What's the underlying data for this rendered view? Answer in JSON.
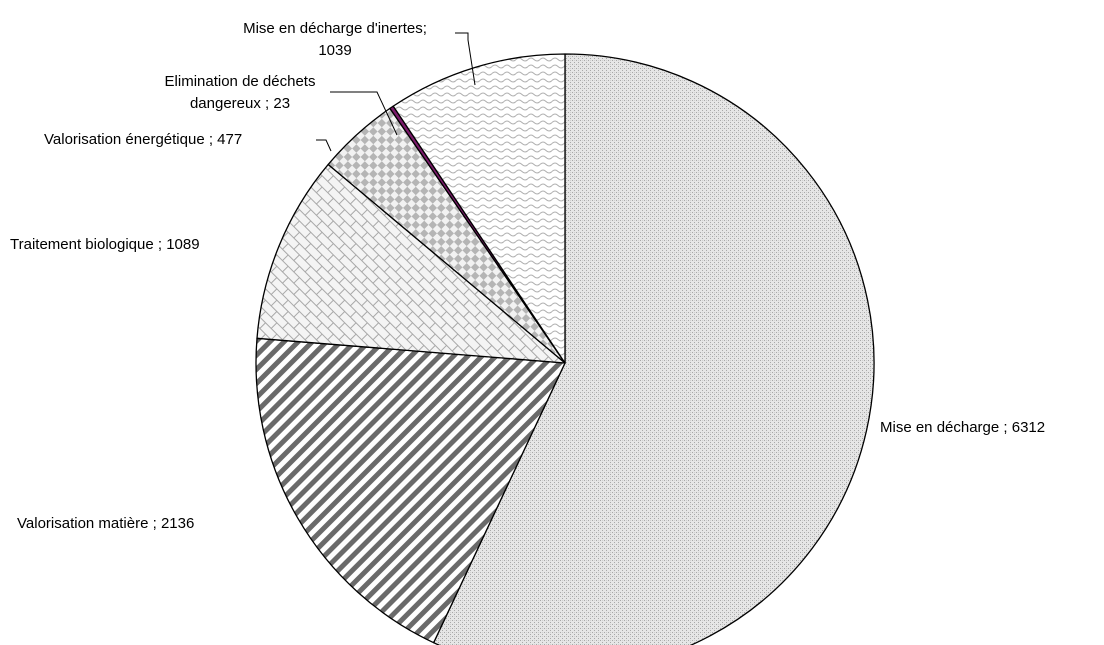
{
  "chart_data": {
    "type": "pie",
    "title": "",
    "start_angle_deg": 0,
    "direction": "clockwise",
    "slices": [
      {
        "name": "Mise en décharge",
        "value": 6312,
        "label_lines": [
          "Mise en décharge ; 6312"
        ],
        "pattern": "dots",
        "color": "#c8c8c8"
      },
      {
        "name": "Valorisation matière",
        "value": 2136,
        "label_lines": [
          "Valorisation matière ; 2136"
        ],
        "pattern": "diagonal-stripes",
        "color": "#6a6a6a"
      },
      {
        "name": "Traitement biologique",
        "value": 1089,
        "label_lines": [
          "Traitement biologique ; 1089"
        ],
        "pattern": "bricks",
        "color": "#bdbdbd"
      },
      {
        "name": "Valorisation énergétique",
        "value": 477,
        "label_lines": [
          "Valorisation énergétique ; 477"
        ],
        "pattern": "checker",
        "color": "#b5b5b5"
      },
      {
        "name": "Elimination de déchets dangereux",
        "value": 23,
        "label_lines": [
          "Elimination de déchets",
          "dangereux ; 23"
        ],
        "pattern": "solid",
        "color": "#7a1a6a"
      },
      {
        "name": "Mise en décharge d'inertes",
        "value": 1039,
        "label_lines": [
          "Mise en décharge d'inertes;",
          "1039"
        ],
        "pattern": "waves",
        "color": "#bdbdbd"
      }
    ]
  }
}
